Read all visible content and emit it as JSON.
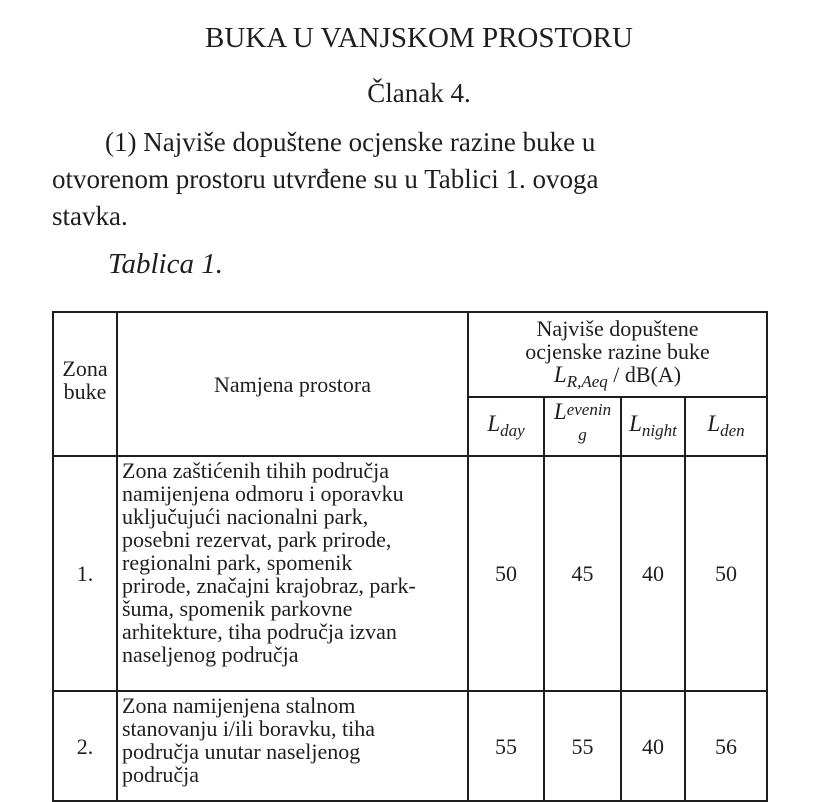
{
  "title": "BUKA U VANJSKOM PROSTORU",
  "article": "Članak 4.",
  "paragraph": {
    "line1": "(1) Najviše dopuštene ocjenske razine buke u",
    "line2": "otvorenom prostoru utvrđene su u Tablici 1. ovoga",
    "line3": "stavka."
  },
  "table_caption": "Tablica 1.",
  "table": {
    "headers": {
      "zone": "Zona buke",
      "purpose": "Namjena prostora",
      "limits": "Najviše dopuštene ocjenske razine buke",
      "unit_symbol": "L",
      "unit_sub": "R,Aeq",
      "unit": "/ dB(A)",
      "cols": [
        {
          "L": "L",
          "sub": "day"
        },
        {
          "L": "L",
          "sub": "evenin",
          "wrap": "g"
        },
        {
          "L": "L",
          "sub": "night"
        },
        {
          "L": "L",
          "sub": "den"
        }
      ]
    },
    "rows": [
      {
        "zone": "1.",
        "lines": [
          "Zona zaštićenih tihih područja",
          "namijenjena odmoru i oporavku",
          "uključujući nacionalni park,",
          "posebni rezervat, park prirode,",
          "regionalni park, spomenik",
          "prirode, značajni krajobraz, park-",
          "šuma, spomenik parkovne",
          "arhitekture, tiha područja izvan",
          "naseljenog područja"
        ],
        "day": "50",
        "evening": "45",
        "night": "40",
        "den": "50"
      },
      {
        "zone": "2.",
        "lines": [
          "Zona namijenjena stalnom",
          "stanovanju i/ili boravku, tiha",
          "područja unutar naseljenog",
          "područja"
        ],
        "day": "55",
        "evening": "55",
        "night": "40",
        "den": "56"
      }
    ]
  }
}
